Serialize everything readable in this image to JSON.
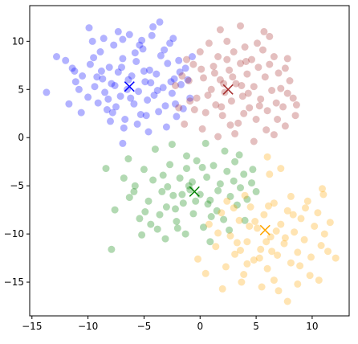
{
  "chart_data": {
    "type": "scatter",
    "title": "",
    "xlabel": "",
    "ylabel": "",
    "xlim": [
      -15.2,
      13.3
    ],
    "ylim": [
      -18.5,
      13.7
    ],
    "grid": false,
    "legend": "none",
    "x_ticks": [
      -15,
      -10,
      -5,
      0,
      5,
      10
    ],
    "y_ticks": [
      -15,
      -10,
      -5,
      0,
      5,
      10
    ],
    "x_tick_labels": [
      "−15",
      "−10",
      "−5",
      "0",
      "5",
      "10"
    ],
    "y_tick_labels": [
      "−15",
      "−10",
      "−5",
      "0",
      "5",
      "10"
    ],
    "point_alpha": 0.3,
    "series": [
      {
        "color": "#0000ff",
        "center": [
          -6.3,
          5.3
        ],
        "points": [
          [
            -12.8,
            8.4
          ],
          [
            -12.0,
            8.0
          ],
          [
            -11.4,
            7.2
          ],
          [
            -11.1,
            5.8
          ],
          [
            -10.5,
            6.4
          ],
          [
            -10.0,
            4.2
          ],
          [
            -9.8,
            7.6
          ],
          [
            -9.6,
            10.0
          ],
          [
            -9.4,
            5.3
          ],
          [
            -9.1,
            3.6
          ],
          [
            -8.9,
            8.9
          ],
          [
            -8.7,
            6.1
          ],
          [
            -8.5,
            4.7
          ],
          [
            -8.3,
            2.9
          ],
          [
            -8.1,
            7.3
          ],
          [
            -7.9,
            5.6
          ],
          [
            -7.7,
            9.6
          ],
          [
            -7.5,
            3.2
          ],
          [
            -7.3,
            6.8
          ],
          [
            -7.1,
            4.3
          ],
          [
            -6.9,
            8.2
          ],
          [
            -6.7,
            1.9
          ],
          [
            -6.5,
            5.0
          ],
          [
            -6.3,
            10.7
          ],
          [
            -6.1,
            6.4
          ],
          [
            -5.9,
            3.5
          ],
          [
            -5.7,
            7.9
          ],
          [
            -5.5,
            4.8
          ],
          [
            -5.3,
            2.4
          ],
          [
            -5.1,
            9.2
          ],
          [
            -4.9,
            5.8
          ],
          [
            -4.7,
            3.9
          ],
          [
            -4.5,
            7.0
          ],
          [
            -4.3,
            10.6
          ],
          [
            -4.1,
            4.4
          ],
          [
            -3.9,
            6.6
          ],
          [
            -3.7,
            2.7
          ],
          [
            -3.5,
            8.5
          ],
          [
            -3.3,
            5.2
          ],
          [
            -3.1,
            3.3
          ],
          [
            -2.9,
            7.7
          ],
          [
            -2.7,
            9.8
          ],
          [
            -2.5,
            4.6
          ],
          [
            -2.3,
            6.1
          ],
          [
            -2.1,
            2.2
          ],
          [
            -1.9,
            8.0
          ],
          [
            -1.7,
            5.5
          ],
          [
            -1.5,
            3.0
          ],
          [
            -1.3,
            7.2
          ],
          [
            -1.1,
            6.0
          ],
          [
            -0.9,
            4.1
          ],
          [
            -0.7,
            8.4
          ],
          [
            -9.9,
            11.4
          ],
          [
            -7.3,
            11.0
          ],
          [
            -6.9,
            10.2
          ],
          [
            -5.4,
            9.6
          ],
          [
            -4.2,
            11.5
          ],
          [
            -3.6,
            12.0
          ],
          [
            -6.8,
            1.0
          ],
          [
            -5.6,
            1.4
          ],
          [
            -4.6,
            0.6
          ],
          [
            -6.9,
            -0.6
          ],
          [
            -13.7,
            4.7
          ],
          [
            -11.7,
            3.5
          ],
          [
            -10.6,
            2.6
          ],
          [
            -8.0,
            1.7
          ],
          [
            -3.0,
            1.1
          ],
          [
            -2.2,
            3.5
          ],
          [
            -8.8,
            6.9
          ],
          [
            -7.6,
            5.4
          ],
          [
            -6.2,
            4.1
          ],
          [
            -5.0,
            6.9
          ],
          [
            -4.4,
            5.7
          ],
          [
            -3.8,
            4.9
          ],
          [
            -7.0,
            7.3
          ],
          [
            -5.8,
            8.8
          ],
          [
            -6.4,
            6.0
          ],
          [
            -8.2,
            4.0
          ],
          [
            -9.2,
            6.3
          ],
          [
            -10.8,
            5.0
          ],
          [
            -2.6,
            5.8
          ],
          [
            -1.8,
            6.8
          ],
          [
            -3.2,
            9.1
          ],
          [
            -4.8,
            2.3
          ],
          [
            -7.8,
            2.6
          ],
          [
            -9.5,
            8.3
          ],
          [
            -8.6,
            10.3
          ],
          [
            -5.2,
            10.1
          ],
          [
            -2.4,
            10.3
          ],
          [
            -11.2,
            6.9
          ]
        ]
      },
      {
        "color": "#a52a2a",
        "center": [
          2.5,
          5.0
        ],
        "points": [
          [
            -1.6,
            6.4
          ],
          [
            -1.0,
            5.9
          ],
          [
            -0.6,
            7.6
          ],
          [
            -0.3,
            4.1
          ],
          [
            0.0,
            8.9
          ],
          [
            0.3,
            6.2
          ],
          [
            0.5,
            2.6
          ],
          [
            0.8,
            9.8
          ],
          [
            1.0,
            5.0
          ],
          [
            1.2,
            7.4
          ],
          [
            1.4,
            3.4
          ],
          [
            1.6,
            8.4
          ],
          [
            1.8,
            6.0
          ],
          [
            2.0,
            2.3
          ],
          [
            2.2,
            4.7
          ],
          [
            2.4,
            10.0
          ],
          [
            2.6,
            7.0
          ],
          [
            2.8,
            3.8
          ],
          [
            3.0,
            8.9
          ],
          [
            3.2,
            5.6
          ],
          [
            3.4,
            1.5
          ],
          [
            3.6,
            7.7
          ],
          [
            3.8,
            4.3
          ],
          [
            4.0,
            9.4
          ],
          [
            4.2,
            6.6
          ],
          [
            4.4,
            3.1
          ],
          [
            4.6,
            8.1
          ],
          [
            4.8,
            5.3
          ],
          [
            5.0,
            1.9
          ],
          [
            5.2,
            7.3
          ],
          [
            5.4,
            4.0
          ],
          [
            5.6,
            9.1
          ],
          [
            5.8,
            6.3
          ],
          [
            6.0,
            2.8
          ],
          [
            6.2,
            7.6
          ],
          [
            6.4,
            4.9
          ],
          [
            6.6,
            8.4
          ],
          [
            6.8,
            3.6
          ],
          [
            7.0,
            6.7
          ],
          [
            7.2,
            5.1
          ],
          [
            7.4,
            3.2
          ],
          [
            7.6,
            7.2
          ],
          [
            7.8,
            4.6
          ],
          [
            8.0,
            5.9
          ],
          [
            8.3,
            4.1
          ],
          [
            8.6,
            3.4
          ],
          [
            1.8,
            11.2
          ],
          [
            3.6,
            11.6
          ],
          [
            5.7,
            11.0
          ],
          [
            6.2,
            10.5
          ],
          [
            -0.9,
            3.8
          ],
          [
            -0.5,
            2.9
          ],
          [
            0.2,
            0.9
          ],
          [
            -1.4,
            1.4
          ],
          [
            1.6,
            0.1
          ],
          [
            3.1,
            0.4
          ],
          [
            4.8,
            -0.4
          ],
          [
            5.9,
            0.8
          ],
          [
            -1.9,
            3.1
          ],
          [
            -2.2,
            5.4
          ],
          [
            0.7,
            4.4
          ],
          [
            1.3,
            6.7
          ],
          [
            2.1,
            5.6
          ],
          [
            2.9,
            6.3
          ],
          [
            3.7,
            5.4
          ],
          [
            4.3,
            4.6
          ],
          [
            1.9,
            3.2
          ],
          [
            2.7,
            1.3
          ],
          [
            3.9,
            2.5
          ],
          [
            5.3,
            3.3
          ],
          [
            6.9,
            1.9
          ],
          [
            7.6,
            1.2
          ],
          [
            8.5,
            2.3
          ],
          [
            6.6,
            0.3
          ],
          [
            2.4,
            8.1
          ],
          [
            4.1,
            7.9
          ],
          [
            0.1,
            7.1
          ],
          [
            -1.2,
            8.1
          ],
          [
            7.8,
            8.2
          ],
          [
            5.1,
            9.8
          ]
        ]
      },
      {
        "color": "#008000",
        "center": [
          -0.5,
          -5.6
        ],
        "points": [
          [
            -8.4,
            -3.2
          ],
          [
            -7.6,
            -7.5
          ],
          [
            -6.8,
            -4.2
          ],
          [
            -6.3,
            -6.2
          ],
          [
            -5.8,
            -5.0
          ],
          [
            -5.4,
            -8.4
          ],
          [
            -5.0,
            -3.3
          ],
          [
            -4.6,
            -6.6
          ],
          [
            -4.2,
            -4.4
          ],
          [
            -3.8,
            -9.5
          ],
          [
            -3.4,
            -5.6
          ],
          [
            -3.0,
            -7.2
          ],
          [
            -2.7,
            -2.8
          ],
          [
            -2.4,
            -6.0
          ],
          [
            -2.1,
            -8.7
          ],
          [
            -1.8,
            -4.2
          ],
          [
            -1.5,
            -6.8
          ],
          [
            -1.2,
            -3.2
          ],
          [
            -0.9,
            -5.4
          ],
          [
            -0.6,
            -7.9
          ],
          [
            -0.3,
            -2.4
          ],
          [
            0.0,
            -5.9
          ],
          [
            0.3,
            -9.3
          ],
          [
            0.6,
            -4.1
          ],
          [
            0.9,
            -6.5
          ],
          [
            1.2,
            -2.9
          ],
          [
            1.5,
            -7.6
          ],
          [
            1.8,
            -4.8
          ],
          [
            2.1,
            -8.5
          ],
          [
            2.4,
            -3.5
          ],
          [
            2.7,
            -6.1
          ],
          [
            3.0,
            -4.5
          ],
          [
            3.3,
            -7.0
          ],
          [
            3.6,
            -5.2
          ],
          [
            3.9,
            -3.8
          ],
          [
            4.2,
            -6.4
          ],
          [
            4.6,
            -4.7
          ],
          [
            5.0,
            -5.6
          ],
          [
            -4.0,
            -1.2
          ],
          [
            -2.5,
            -0.7
          ],
          [
            -1.2,
            -1.9
          ],
          [
            0.5,
            -0.6
          ],
          [
            2.2,
            -1.4
          ],
          [
            3.5,
            -1.8
          ],
          [
            -5.2,
            -10.1
          ],
          [
            -3.1,
            -10.5
          ],
          [
            -1.3,
            -10.0
          ],
          [
            0.9,
            -10.8
          ],
          [
            -7.9,
            -11.6
          ],
          [
            -6.4,
            -2.2
          ],
          [
            -3.6,
            -8.0
          ],
          [
            -2.0,
            -9.4
          ],
          [
            -0.7,
            -4.6
          ],
          [
            1.0,
            -8.2
          ],
          [
            2.6,
            -9.6
          ],
          [
            4.0,
            -8.6
          ],
          [
            -4.9,
            -7.7
          ],
          [
            -3.3,
            -3.9
          ],
          [
            -1.6,
            -5.9
          ],
          [
            0.2,
            -3.1
          ],
          [
            1.6,
            -5.5
          ],
          [
            -2.9,
            -5.1
          ],
          [
            -0.4,
            -6.6
          ],
          [
            -1.0,
            -5.0
          ],
          [
            0.7,
            -6.9
          ],
          [
            -2.2,
            -7.4
          ],
          [
            -4.4,
            -9.0
          ],
          [
            3.1,
            -2.5
          ],
          [
            4.7,
            -3.3
          ],
          [
            -5.9,
            -5.6
          ]
        ]
      },
      {
        "color": "#ffa500",
        "center": [
          5.8,
          -9.6
        ],
        "points": [
          [
            0.8,
            -9.0
          ],
          [
            1.4,
            -11.3
          ],
          [
            1.9,
            -7.8
          ],
          [
            2.3,
            -13.4
          ],
          [
            2.7,
            -10.2
          ],
          [
            3.1,
            -12.1
          ],
          [
            3.5,
            -8.6
          ],
          [
            3.9,
            -14.2
          ],
          [
            4.2,
            -10.8
          ],
          [
            4.5,
            -7.2
          ],
          [
            4.8,
            -12.7
          ],
          [
            5.1,
            -9.4
          ],
          [
            5.4,
            -11.6
          ],
          [
            5.7,
            -8.0
          ],
          [
            6.0,
            -13.6
          ],
          [
            6.3,
            -10.3
          ],
          [
            6.6,
            -6.8
          ],
          [
            6.9,
            -12.2
          ],
          [
            7.2,
            -9.0
          ],
          [
            7.5,
            -11.0
          ],
          [
            7.8,
            -7.6
          ],
          [
            8.1,
            -13.0
          ],
          [
            8.4,
            -9.8
          ],
          [
            8.7,
            -11.9
          ],
          [
            9.0,
            -8.4
          ],
          [
            9.3,
            -10.6
          ],
          [
            9.6,
            -6.6
          ],
          [
            9.9,
            -12.4
          ],
          [
            10.2,
            -9.2
          ],
          [
            10.5,
            -7.8
          ],
          [
            10.8,
            -11.2
          ],
          [
            11.1,
            -10.0
          ],
          [
            11.6,
            -8.8
          ],
          [
            12.1,
            -12.5
          ],
          [
            11.4,
            -11.8
          ],
          [
            10.9,
            -5.3
          ],
          [
            7.8,
            -17.0
          ],
          [
            5.5,
            -15.5
          ],
          [
            8.7,
            -15.2
          ],
          [
            6.6,
            -14.8
          ],
          [
            3.7,
            -15.0
          ],
          [
            0.5,
            -14.1
          ],
          [
            -0.2,
            -12.6
          ],
          [
            2.0,
            -15.7
          ],
          [
            7.2,
            -3.2
          ],
          [
            6.2,
            -3.8
          ],
          [
            6.0,
            -2.0
          ],
          [
            8.1,
            -6.1
          ],
          [
            4.0,
            -6.0
          ],
          [
            2.4,
            -6.6
          ],
          [
            1.6,
            -9.9
          ],
          [
            3.3,
            -10.9
          ],
          [
            4.9,
            -8.7
          ],
          [
            5.9,
            -10.8
          ],
          [
            6.8,
            -9.7
          ],
          [
            7.6,
            -10.4
          ],
          [
            5.3,
            -12.5
          ],
          [
            6.4,
            -11.8
          ],
          [
            4.4,
            -9.2
          ],
          [
            3.0,
            -7.3
          ],
          [
            8.9,
            -13.3
          ],
          [
            9.8,
            -14.3
          ],
          [
            10.6,
            -14.8
          ],
          [
            7.0,
            -15.9
          ],
          [
            4.2,
            -13.1
          ],
          [
            6.1,
            -7.1
          ],
          [
            9.4,
            -7.3
          ],
          [
            11.0,
            -5.9
          ],
          [
            8.3,
            -8.0
          ],
          [
            3.6,
            -11.7
          ]
        ]
      }
    ]
  }
}
